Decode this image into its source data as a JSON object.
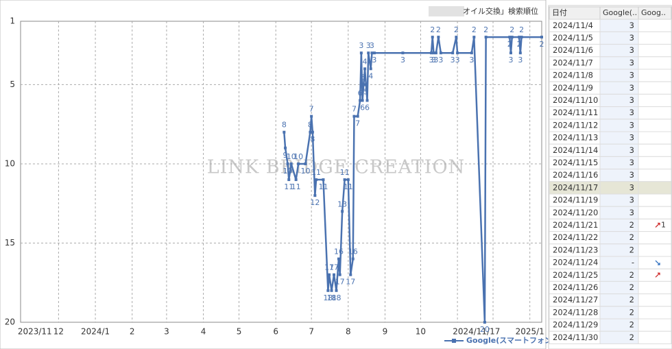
{
  "chart_data": {
    "type": "line",
    "title": "オイル交換」検索順位",
    "watermark": "LINK BRIDGE CREATION",
    "y_reversed": true,
    "ylim": [
      1,
      20
    ],
    "yticks": [
      1,
      5,
      10,
      15,
      20
    ],
    "xlim": [
      -2,
      437
    ],
    "xticks": [
      {
        "value": 10,
        "label": "2023/11"
      },
      {
        "value": 30,
        "label": "12"
      },
      {
        "value": 61,
        "label": "2024/1"
      },
      {
        "value": 92,
        "label": "2"
      },
      {
        "value": 121,
        "label": "3"
      },
      {
        "value": 152,
        "label": "4"
      },
      {
        "value": 182,
        "label": "5"
      },
      {
        "value": 213,
        "label": "6"
      },
      {
        "value": 243,
        "label": "7"
      },
      {
        "value": 274,
        "label": "8"
      },
      {
        "value": 305,
        "label": "9"
      },
      {
        "value": 335,
        "label": "10"
      },
      {
        "value": 382,
        "label": "2024/11/17"
      },
      {
        "value": 427,
        "label": "2025/1"
      }
    ],
    "grid_x": [
      30,
      61,
      92,
      121,
      152,
      182,
      213,
      243,
      274,
      305,
      335,
      366,
      396,
      427
    ],
    "grid": true,
    "legend": "bottom-right",
    "series": [
      {
        "name": "Google(スマートフォン)",
        "color": "#4a72b0",
        "x": [
          220,
          221,
          223,
          224,
          226,
          230,
          232,
          238,
          242,
          243,
          244,
          246,
          247,
          253,
          257,
          258,
          260,
          262,
          264,
          266,
          267,
          269,
          271,
          274,
          276,
          278,
          279,
          282,
          284,
          285,
          286,
          287,
          288,
          289,
          290,
          291,
          293,
          294,
          296,
          320,
          344,
          345,
          346,
          348,
          350,
          352,
          362,
          365,
          366,
          378,
          380,
          389,
          390,
          410,
          411,
          412,
          418,
          419,
          420,
          437
        ],
        "values": [
          8,
          9,
          10,
          11,
          10,
          11,
          10,
          10,
          8,
          7,
          8,
          12,
          11,
          11,
          18,
          17,
          18,
          17,
          18,
          16,
          17,
          13,
          11,
          11,
          17,
          16,
          7,
          7,
          6,
          3,
          6,
          5,
          4,
          5,
          6,
          3,
          4,
          3,
          3,
          3,
          3,
          2,
          3,
          3,
          2,
          3,
          3,
          2,
          3,
          3,
          2,
          20,
          2,
          2,
          3,
          2,
          2,
          3,
          2,
          2
        ]
      }
    ]
  },
  "table": {
    "headers": [
      "日付",
      "Google(..",
      "Goog.."
    ],
    "highlight_row": 13,
    "rows": [
      {
        "date": "2024/11/4",
        "rank": "3"
      },
      {
        "date": "2024/11/5",
        "rank": "3"
      },
      {
        "date": "2024/11/6",
        "rank": "3"
      },
      {
        "date": "2024/11/7",
        "rank": "3"
      },
      {
        "date": "2024/11/8",
        "rank": "3"
      },
      {
        "date": "2024/11/9",
        "rank": "3"
      },
      {
        "date": "2024/11/10",
        "rank": "3"
      },
      {
        "date": "2024/11/11",
        "rank": "3"
      },
      {
        "date": "2024/11/12",
        "rank": "3"
      },
      {
        "date": "2024/11/13",
        "rank": "3"
      },
      {
        "date": "2024/11/14",
        "rank": "3"
      },
      {
        "date": "2024/11/15",
        "rank": "3"
      },
      {
        "date": "2024/11/16",
        "rank": "3"
      },
      {
        "date": "2024/11/17",
        "rank": "3"
      },
      {
        "date": "2024/11/19",
        "rank": "3"
      },
      {
        "date": "2024/11/20",
        "rank": "3"
      },
      {
        "date": "2024/11/21",
        "rank": "2",
        "change": "1",
        "direction": "up"
      },
      {
        "date": "2024/11/22",
        "rank": "2"
      },
      {
        "date": "2024/11/23",
        "rank": "2"
      },
      {
        "date": "2024/11/24",
        "rank": "-",
        "direction": "down"
      },
      {
        "date": "2024/11/25",
        "rank": "2",
        "direction": "up"
      },
      {
        "date": "2024/11/26",
        "rank": "2"
      },
      {
        "date": "2024/11/27",
        "rank": "2"
      },
      {
        "date": "2024/11/28",
        "rank": "2"
      },
      {
        "date": "2024/11/29",
        "rank": "2"
      },
      {
        "date": "2024/11/30",
        "rank": "2"
      }
    ]
  }
}
